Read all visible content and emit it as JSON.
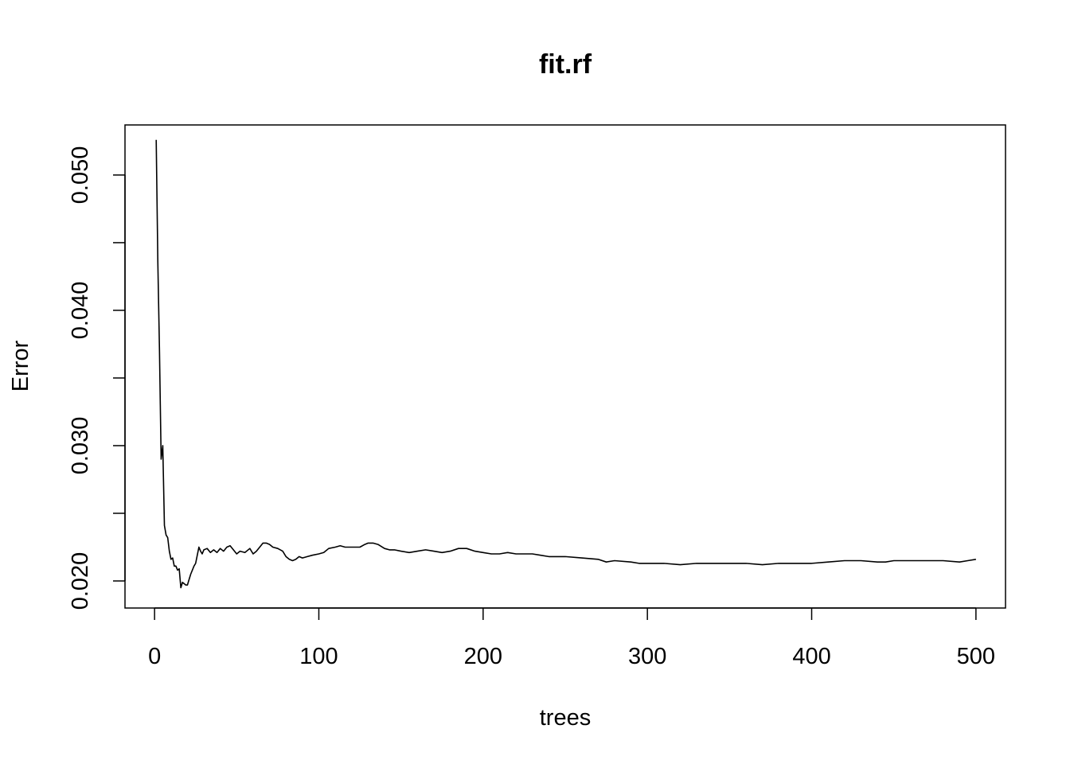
{
  "chart_data": {
    "type": "line",
    "title": "fit.rf",
    "xlabel": "trees",
    "ylabel": "Error",
    "xlim": [
      -18,
      518
    ],
    "ylim": [
      0.018,
      0.0537
    ],
    "xticks": [
      0,
      100,
      200,
      300,
      400,
      500
    ],
    "xtick_labels": [
      "0",
      "100",
      "200",
      "300",
      "400",
      "500"
    ],
    "yticks": [
      0.02,
      0.025,
      0.03,
      0.035,
      0.04,
      0.045,
      0.05
    ],
    "ytick_labels": [
      "0.020",
      "",
      "0.030",
      "",
      "0.040",
      "",
      "0.050"
    ],
    "grid": false,
    "legend": "none",
    "series": [
      {
        "color": "#000000",
        "x": [
          1,
          2,
          3,
          4,
          5,
          6,
          7,
          8,
          9,
          10,
          11,
          12,
          13,
          14,
          15,
          16,
          17,
          18,
          19,
          20,
          21,
          22,
          23,
          24,
          25,
          26,
          27,
          28,
          29,
          30,
          32,
          34,
          36,
          38,
          40,
          42,
          44,
          46,
          48,
          50,
          52,
          55,
          58,
          60,
          62,
          64,
          66,
          68,
          70,
          72,
          75,
          78,
          80,
          82,
          84,
          86,
          88,
          90,
          93,
          96,
          100,
          103,
          106,
          110,
          113,
          116,
          120,
          125,
          128,
          130,
          133,
          136,
          140,
          143,
          146,
          150,
          155,
          160,
          165,
          170,
          175,
          180,
          185,
          190,
          195,
          200,
          205,
          210,
          215,
          220,
          225,
          230,
          235,
          240,
          250,
          260,
          270,
          275,
          280,
          290,
          295,
          300,
          310,
          320,
          330,
          340,
          350,
          360,
          370,
          380,
          390,
          400,
          410,
          420,
          430,
          440,
          445,
          450,
          460,
          470,
          480,
          490,
          495,
          500
        ],
        "y": [
          0.0526,
          0.0435,
          0.037,
          0.029,
          0.03,
          0.0241,
          0.0234,
          0.0232,
          0.0222,
          0.0216,
          0.0217,
          0.0211,
          0.0211,
          0.0208,
          0.0209,
          0.0195,
          0.0199,
          0.0198,
          0.0197,
          0.0197,
          0.0201,
          0.0205,
          0.0208,
          0.0211,
          0.0213,
          0.0219,
          0.0225,
          0.0222,
          0.022,
          0.0223,
          0.0224,
          0.0221,
          0.0223,
          0.0221,
          0.0224,
          0.0222,
          0.0225,
          0.0226,
          0.0223,
          0.022,
          0.0222,
          0.0221,
          0.0224,
          0.022,
          0.0222,
          0.0225,
          0.0228,
          0.0228,
          0.0227,
          0.0225,
          0.0224,
          0.0222,
          0.0218,
          0.0216,
          0.0215,
          0.0216,
          0.0218,
          0.0217,
          0.0218,
          0.0219,
          0.022,
          0.0221,
          0.0224,
          0.0225,
          0.0226,
          0.0225,
          0.0225,
          0.0225,
          0.0227,
          0.0228,
          0.0228,
          0.0227,
          0.0224,
          0.0223,
          0.0223,
          0.0222,
          0.0221,
          0.0222,
          0.0223,
          0.0222,
          0.0221,
          0.0222,
          0.0224,
          0.0224,
          0.0222,
          0.0221,
          0.022,
          0.022,
          0.0221,
          0.022,
          0.022,
          0.022,
          0.0219,
          0.0218,
          0.0218,
          0.0217,
          0.0216,
          0.0214,
          0.0215,
          0.0214,
          0.0213,
          0.0213,
          0.0213,
          0.0212,
          0.0213,
          0.0213,
          0.0213,
          0.0213,
          0.0212,
          0.0213,
          0.0213,
          0.0213,
          0.0214,
          0.0215,
          0.0215,
          0.0214,
          0.0214,
          0.0215,
          0.0215,
          0.0215,
          0.0215,
          0.0214,
          0.0215,
          0.0216
        ]
      }
    ]
  }
}
